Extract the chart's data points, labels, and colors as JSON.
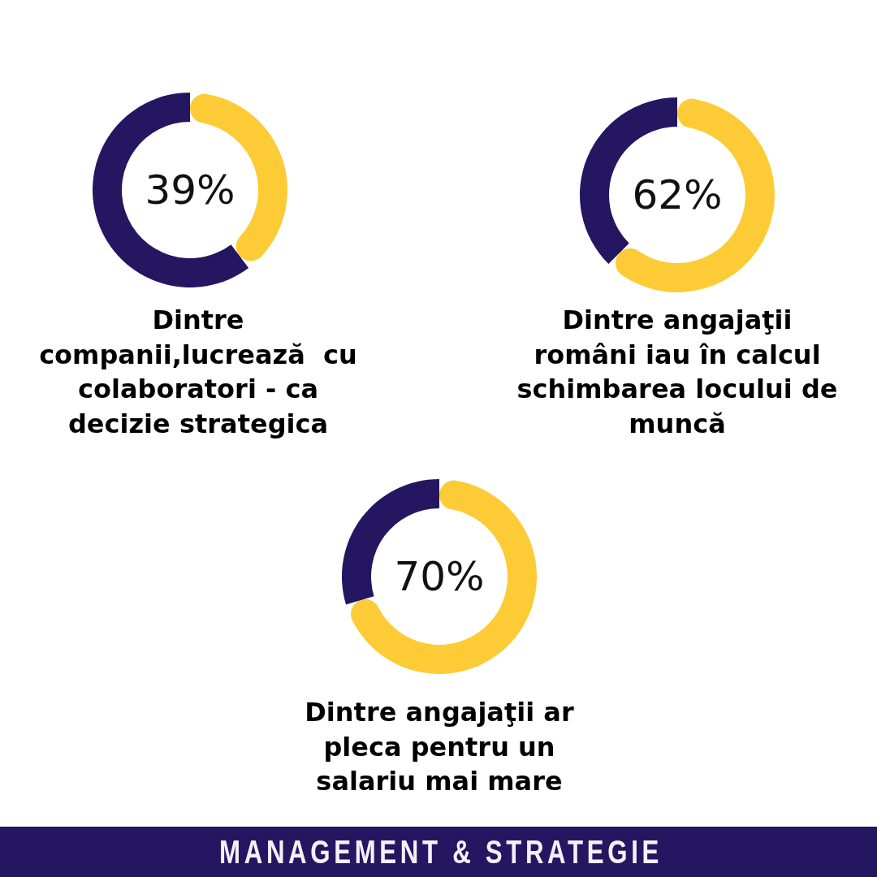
{
  "chart_data": [
    {
      "type": "donut",
      "title": "Dintre companii,lucrează  cu colaboratori - ca decizie strategica",
      "categories": [
        null,
        null
      ],
      "values": [
        39,
        61
      ],
      "colors": [
        "#fdcb35",
        "#241660"
      ],
      "annotations": [
        "39%"
      ]
    },
    {
      "type": "donut",
      "title": "Dintre angajaţii români iau în calcul schimbarea locului de muncă",
      "categories": [
        null,
        null
      ],
      "values": [
        62,
        38
      ],
      "colors": [
        "#fdcb35",
        "#241660"
      ],
      "annotations": [
        "62%"
      ]
    },
    {
      "type": "donut",
      "title": "Dintre angajaţii ar pleca pentru un salariu mai mare",
      "categories": [
        null,
        null
      ],
      "values": [
        70,
        30
      ],
      "colors": [
        "#fdcb35",
        "#241660"
      ],
      "annotations": [
        "70%"
      ]
    },
    {
      "type": "other",
      "title": "MANAGEMENT & STRATEGIE"
    }
  ]
}
